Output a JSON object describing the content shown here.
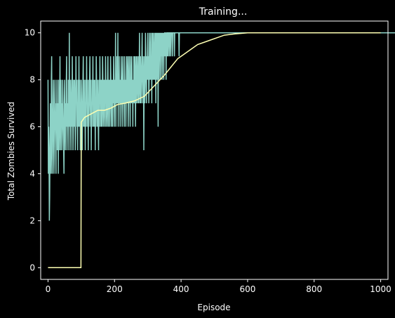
{
  "chart_data": {
    "type": "line",
    "title": "Training...",
    "xlabel": "Episode",
    "ylabel": "Total Zombies Survived",
    "xlim": [
      -22,
      1022
    ],
    "ylim": [
      -0.5,
      10.5
    ],
    "x_ticks": [
      0,
      200,
      400,
      600,
      800,
      1000
    ],
    "y_ticks": [
      0,
      2,
      4,
      6,
      8,
      10
    ],
    "grid": false,
    "legend": "none",
    "colors": {
      "background": "#000000",
      "axes": "#ffffff",
      "raw_series": "#8dd3c7",
      "avg_series": "#feffb3"
    },
    "series": [
      {
        "role": "per-episode",
        "values": [
          8,
          4,
          6,
          5,
          2,
          3,
          5,
          7,
          6,
          4,
          8,
          9,
          5,
          4,
          6,
          7,
          8,
          5,
          4,
          6,
          7,
          8,
          6,
          5,
          4,
          7,
          6,
          8,
          5,
          6,
          7,
          4,
          8,
          6,
          5,
          7,
          9,
          6,
          5,
          8,
          6,
          7,
          5,
          6,
          8,
          7,
          6,
          5,
          4,
          7,
          8,
          6,
          5,
          7,
          6,
          8,
          9,
          5,
          6,
          7,
          6,
          8,
          7,
          5,
          10,
          6,
          7,
          8,
          6,
          5,
          7,
          8,
          6,
          9,
          7,
          5,
          6,
          8,
          7,
          6,
          8,
          7,
          5,
          6,
          9,
          7,
          8,
          6,
          7,
          5,
          8,
          7,
          6,
          9,
          6,
          7,
          8,
          5,
          7,
          6,
          8,
          7,
          6,
          5,
          7,
          8,
          9,
          6,
          7,
          8,
          6,
          7,
          5,
          8,
          7,
          6,
          9,
          7,
          8,
          6,
          7,
          5,
          8,
          6,
          7,
          8,
          9,
          7,
          6,
          8,
          5,
          7,
          6,
          8,
          7,
          9,
          6,
          7,
          8,
          6,
          7,
          8,
          5,
          7,
          6,
          9,
          8,
          7,
          6,
          8,
          7,
          6,
          5,
          8,
          7,
          6,
          9,
          7,
          8,
          6,
          7,
          8,
          6,
          7,
          9,
          8,
          6,
          7,
          8,
          7,
          6,
          8,
          7,
          9,
          6,
          7,
          8,
          7,
          6,
          8,
          9,
          7,
          6,
          8,
          7,
          8,
          6,
          7,
          9,
          8,
          7,
          6,
          8,
          7,
          6,
          8,
          7,
          9,
          8,
          6,
          7,
          8,
          7,
          10,
          6,
          8,
          7,
          9,
          8,
          7,
          10,
          6,
          8,
          7,
          9,
          7,
          8,
          6,
          8,
          7,
          9,
          8,
          7,
          6,
          8,
          9,
          7,
          8,
          7,
          6,
          9,
          8,
          7,
          8,
          6,
          7,
          9,
          8,
          7,
          8,
          9,
          6,
          7,
          8,
          9,
          7,
          8,
          6,
          9,
          8,
          7,
          8,
          9,
          7,
          8,
          6,
          8,
          7,
          9,
          8,
          7,
          9,
          8,
          6,
          8,
          9,
          7,
          8,
          9,
          8,
          7,
          8,
          9,
          7,
          8,
          10,
          8,
          7,
          9,
          8,
          7,
          8,
          9,
          10,
          8,
          7,
          9,
          8,
          5,
          8,
          9,
          7,
          8,
          10,
          9,
          8,
          7,
          9,
          8,
          9,
          10,
          8,
          9,
          7,
          8,
          10,
          9,
          8,
          9,
          10,
          8,
          9,
          7,
          10,
          9,
          8,
          10,
          9,
          8,
          9,
          10,
          8,
          9,
          10,
          7,
          9,
          10,
          8,
          9,
          10,
          9,
          6,
          10,
          9,
          8,
          10,
          9,
          10,
          8,
          9,
          10,
          9,
          10,
          8,
          10,
          9,
          10,
          9,
          8,
          10,
          9,
          10,
          10,
          9,
          10,
          8,
          10,
          10,
          9,
          10,
          10,
          9,
          10,
          10,
          10,
          9,
          10,
          10,
          10,
          9,
          10,
          10,
          10,
          10,
          9,
          10,
          10,
          10,
          10,
          10,
          9,
          10,
          10,
          10,
          10,
          10,
          10,
          10,
          10,
          10,
          10,
          10,
          10,
          10,
          9,
          10,
          10,
          10,
          10,
          10,
          10,
          10,
          10,
          10,
          10,
          10,
          10,
          10,
          10,
          10,
          10,
          10,
          10,
          10,
          10,
          10,
          10,
          10,
          10,
          10,
          10,
          10,
          10,
          10,
          10,
          10,
          10,
          10,
          10,
          10,
          10,
          10,
          10,
          10,
          10,
          10,
          10,
          10,
          10,
          10,
          10,
          10,
          10,
          10,
          10,
          10,
          10,
          10,
          10,
          10,
          10,
          10,
          10,
          10,
          10,
          10,
          10,
          10,
          10,
          10,
          10,
          10,
          10,
          10,
          10,
          10,
          10,
          10,
          10,
          10,
          10,
          10,
          10,
          10,
          10,
          10,
          10,
          10,
          10,
          10,
          10,
          10,
          10,
          10,
          10,
          10,
          10,
          10,
          10,
          10,
          10,
          10,
          10,
          10,
          10,
          10,
          10,
          10,
          10,
          10,
          10,
          10,
          10,
          10,
          10,
          10,
          10,
          10,
          10,
          10,
          10,
          10,
          10,
          10,
          10,
          10,
          10,
          10,
          10,
          10,
          10,
          10,
          10,
          10,
          10,
          10,
          10,
          10,
          10,
          10,
          10,
          10,
          10,
          10,
          10,
          10,
          10,
          10,
          10,
          10,
          10,
          10,
          10,
          10,
          10,
          10,
          10,
          10,
          10,
          10,
          10,
          10,
          10,
          10,
          10,
          10,
          10,
          10,
          10,
          10,
          10,
          10,
          10,
          10,
          10,
          10,
          10,
          10,
          10,
          10,
          10,
          10,
          10,
          10,
          10,
          10,
          10,
          10,
          10,
          10,
          10,
          10,
          10,
          10,
          10,
          10,
          10,
          10,
          10,
          10,
          10,
          10,
          10,
          10,
          10,
          10,
          10,
          10,
          10,
          10,
          10,
          10,
          10,
          10,
          10,
          10,
          10,
          10,
          10,
          10,
          10,
          10,
          10,
          10,
          10,
          10,
          10,
          10,
          10,
          10,
          10,
          10,
          10,
          10,
          10,
          10,
          10,
          10,
          10,
          10,
          10,
          10,
          10,
          10,
          10,
          10,
          10,
          10,
          10,
          10,
          10,
          10,
          10,
          10,
          10,
          10,
          10,
          10,
          10,
          10,
          10,
          10,
          10,
          10,
          10,
          10,
          10,
          10,
          10,
          10,
          10,
          10,
          10,
          10,
          10,
          10,
          10,
          10,
          10,
          10,
          10,
          10,
          10,
          10,
          10,
          10,
          10,
          10,
          10,
          10,
          10,
          10,
          10,
          10,
          10,
          10,
          10,
          10,
          10,
          10,
          10,
          10,
          10,
          10,
          10,
          10,
          10,
          10,
          10,
          10,
          10,
          10,
          10,
          10,
          10,
          10,
          10,
          10,
          10,
          10,
          10,
          10,
          10,
          10,
          10,
          10,
          10,
          10,
          10,
          10,
          10,
          10,
          10,
          10,
          10,
          10,
          10,
          10,
          10,
          10,
          10,
          10,
          10,
          10,
          10,
          10,
          10,
          10,
          10,
          10,
          10,
          10,
          10,
          10,
          10,
          10,
          10,
          10,
          10,
          10,
          10,
          10,
          10,
          10,
          10,
          10,
          10,
          10,
          10,
          10,
          10,
          10,
          10,
          10,
          10,
          10,
          10,
          10,
          10,
          10,
          10,
          10,
          10,
          10,
          10,
          10,
          10,
          10,
          10,
          10,
          10,
          10,
          10,
          10,
          10,
          10,
          10,
          10,
          10,
          10,
          10,
          10,
          10,
          10,
          10,
          10,
          10,
          10,
          10,
          10,
          10,
          10,
          10,
          10,
          10,
          10,
          10,
          10,
          10,
          10,
          10,
          10,
          10,
          10,
          10,
          10,
          10,
          10,
          10,
          10,
          10,
          10,
          10,
          10,
          10,
          10,
          10,
          10,
          10,
          10,
          10,
          10,
          10,
          10,
          10,
          10,
          10,
          10,
          10,
          10,
          10,
          10,
          10,
          10,
          10,
          10,
          10,
          10,
          10,
          10,
          10,
          10,
          10,
          10,
          10,
          10,
          10,
          10,
          10,
          10,
          10,
          10,
          10,
          10,
          10,
          10,
          10,
          10,
          10,
          10,
          10,
          10,
          10,
          10,
          10,
          10,
          10,
          10,
          10,
          10,
          10,
          10,
          10,
          10,
          10,
          10,
          10,
          10,
          10,
          10,
          10,
          10,
          10,
          10,
          10,
          10,
          10,
          10,
          10,
          10,
          10,
          10,
          10,
          10,
          10,
          10,
          10,
          10,
          10,
          10,
          10,
          10,
          10,
          10,
          10,
          10,
          10,
          10,
          10,
          10,
          10,
          10,
          10,
          10,
          10,
          10,
          10,
          10,
          10,
          10,
          10,
          10,
          10,
          10,
          10,
          10,
          10,
          10,
          10,
          10,
          10,
          10,
          10,
          10,
          10,
          10,
          10,
          10,
          10,
          10,
          10,
          10,
          10,
          10,
          10,
          10,
          10,
          10,
          10,
          10,
          10,
          10,
          10,
          10,
          10,
          10,
          10,
          10,
          10,
          10,
          10,
          10,
          10,
          10,
          10,
          10,
          10,
          10,
          10,
          10,
          10,
          10,
          10,
          10,
          10,
          10,
          10,
          10,
          10,
          10,
          10,
          10,
          10,
          10,
          10,
          10,
          10,
          10,
          10,
          10,
          10,
          10,
          10,
          10,
          10,
          10,
          10,
          10,
          10,
          10,
          10,
          10,
          10,
          10,
          10,
          10,
          10,
          10,
          10,
          10,
          10,
          10,
          10,
          10,
          10,
          10,
          10,
          10,
          10,
          10,
          10,
          10,
          10,
          10,
          10,
          10,
          10,
          10,
          10,
          10,
          10,
          10,
          10,
          10,
          10,
          10,
          10,
          10,
          10,
          10,
          10,
          10,
          10,
          10,
          10,
          10,
          10,
          10,
          10,
          10,
          10,
          10,
          10,
          10,
          10,
          10,
          10,
          10,
          10,
          10,
          10
        ]
      },
      {
        "role": "running-average",
        "points": [
          [
            0,
            0
          ],
          [
            99,
            0
          ],
          [
            100,
            6.2
          ],
          [
            110,
            6.4
          ],
          [
            130,
            6.55
          ],
          [
            150,
            6.7
          ],
          [
            170,
            6.7
          ],
          [
            190,
            6.8
          ],
          [
            210,
            6.95
          ],
          [
            230,
            7.0
          ],
          [
            260,
            7.1
          ],
          [
            290,
            7.3
          ],
          [
            310,
            7.6
          ],
          [
            330,
            7.9
          ],
          [
            350,
            8.2
          ],
          [
            370,
            8.55
          ],
          [
            390,
            8.9
          ],
          [
            410,
            9.1
          ],
          [
            430,
            9.3
          ],
          [
            450,
            9.5
          ],
          [
            470,
            9.6
          ],
          [
            490,
            9.7
          ],
          [
            510,
            9.8
          ],
          [
            530,
            9.9
          ],
          [
            560,
            9.95
          ],
          [
            600,
            10
          ],
          [
            1000,
            10
          ]
        ]
      }
    ]
  }
}
